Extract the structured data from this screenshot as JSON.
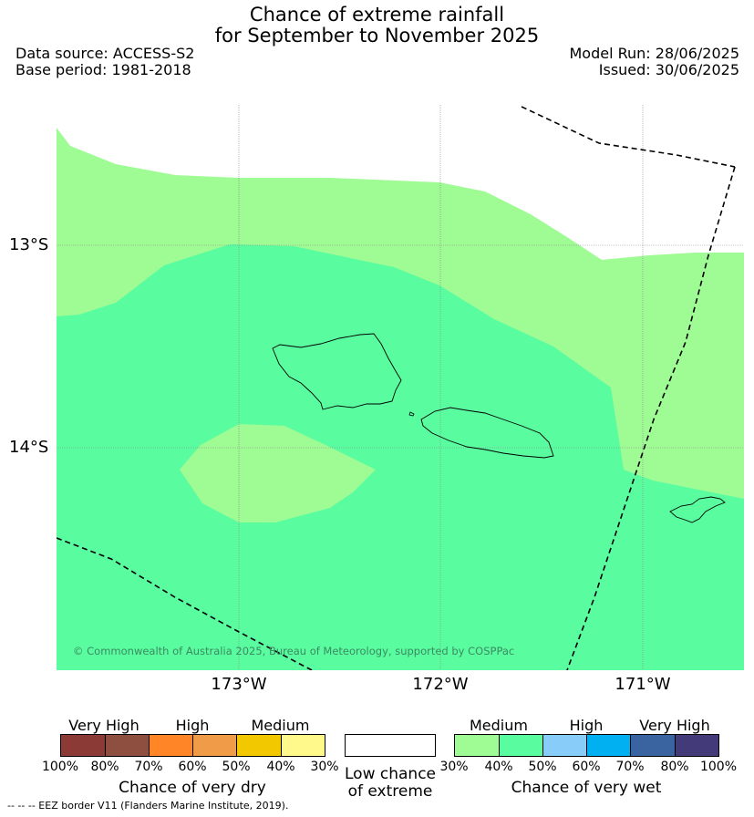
{
  "title_line1": "Chance of extreme rainfall",
  "title_line2": "for September to November 2025",
  "data_source": "Data source: ACCESS-S2",
  "base_period": "Base period: 1981-2018",
  "model_run": "Model Run: 28/06/2025",
  "issued": "Issued: 30/06/2025",
  "map": {
    "lat_labels": [
      "13°S",
      "14°S"
    ],
    "lon_labels": [
      "173°W",
      "172°W",
      "171°W"
    ],
    "credit": "© Commonwealth of Australia 2025, Bureau of Meteorology, supported by COSPPac",
    "colors": {
      "medium_30_40": "#9ffb94",
      "medium_40_50": "#59fc9f",
      "border": "#000000"
    }
  },
  "legend": {
    "dry": {
      "labels": [
        "Very High",
        "High",
        "Medium"
      ],
      "ticks": [
        "100%",
        "80%",
        "70%",
        "60%",
        "50%",
        "40%",
        "30%"
      ],
      "colors": [
        "#8b3a36",
        "#8e4e40",
        "#ff8527",
        "#f09b48",
        "#f2c900",
        "#fff88a"
      ],
      "caption": "Chance of very dry"
    },
    "low": {
      "caption_line1": "Low chance",
      "caption_line2": "of extreme"
    },
    "wet": {
      "labels": [
        "Medium",
        "High",
        "Very High"
      ],
      "ticks": [
        "30%",
        "40%",
        "50%",
        "60%",
        "70%",
        "80%",
        "100%"
      ],
      "colors": [
        "#9ffb94",
        "#59fc9f",
        "#88cdfa",
        "#00b0f0",
        "#3a64a0",
        "#433a7a"
      ],
      "caption": "Chance of very wet"
    }
  },
  "footer": "--  --  -- EEZ border V11 (Flanders Marine Institute, 2019)."
}
